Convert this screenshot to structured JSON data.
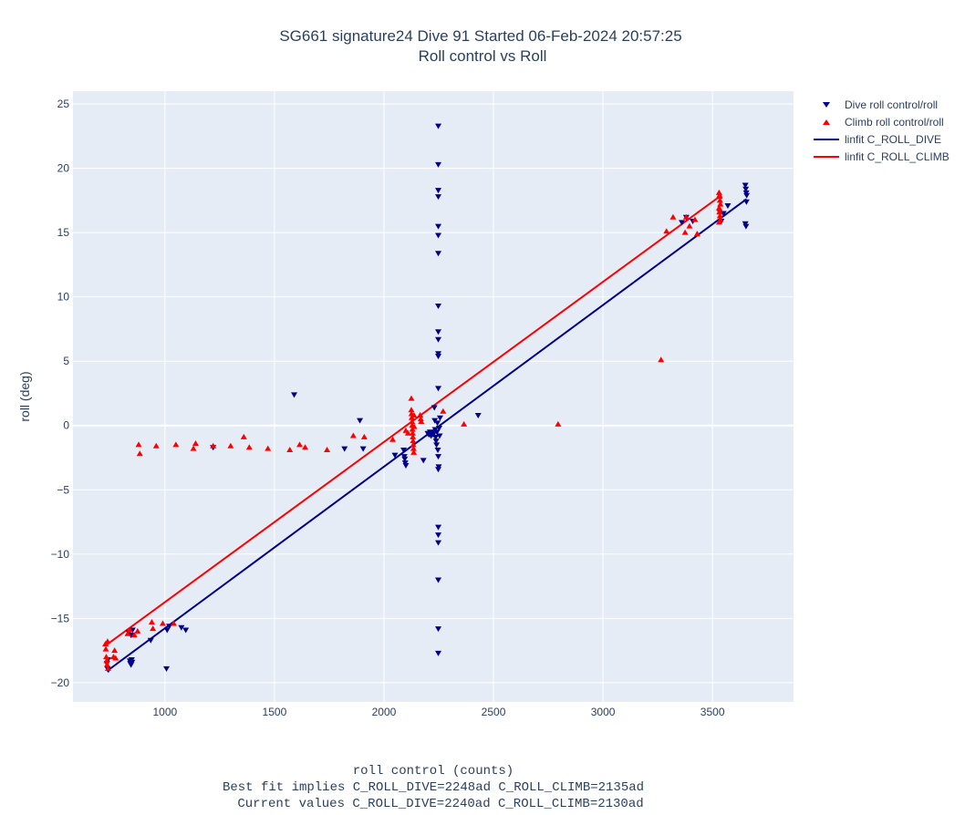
{
  "chart_data": {
    "type": "scatter",
    "title": "SG661 signature24 Dive 91 Started 06-Feb-2024 20:57:25",
    "subtitle": "Roll control vs Roll",
    "xlabel": "roll control (counts)",
    "xlabel_notes": [
      "Best fit implies C_ROLL_DIVE=2248ad C_ROLL_CLIMB=2135ad",
      "Current values C_ROLL_DIVE=2240ad C_ROLL_CLIMB=2130ad"
    ],
    "ylabel": "roll (deg)",
    "xlim": [
      580,
      3870
    ],
    "ylim": [
      -21.5,
      26
    ],
    "x_ticks": [
      1000,
      1500,
      2000,
      2500,
      3000,
      3500
    ],
    "x_tick_labels": [
      "1000",
      "1500",
      "2000",
      "2500",
      "3000",
      "3500"
    ],
    "y_ticks": [
      -20,
      -15,
      -10,
      -5,
      0,
      5,
      10,
      15,
      20,
      25
    ],
    "y_tick_labels": [
      "−20",
      "−15",
      "−10",
      "−5",
      "0",
      "5",
      "10",
      "15",
      "20",
      "25"
    ],
    "grid": true,
    "legend_position": "top-right",
    "series": [
      {
        "name": "Dive roll control/roll",
        "kind": "markers",
        "marker": "triangle-down",
        "color": "#00008b",
        "points": [
          [
            735,
            -18.5
          ],
          [
            738,
            -18.9
          ],
          [
            740,
            -18.2
          ],
          [
            742,
            -19.0
          ],
          [
            840,
            -18.3
          ],
          [
            842,
            -18.5
          ],
          [
            845,
            -18.6
          ],
          [
            848,
            -18.2
          ],
          [
            850,
            -18.4
          ],
          [
            835,
            -16.1
          ],
          [
            845,
            -16.3
          ],
          [
            852,
            -15.9
          ],
          [
            935,
            -16.7
          ],
          [
            1010,
            -15.9
          ],
          [
            1020,
            -15.6
          ],
          [
            1007,
            -18.9
          ],
          [
            1075,
            -15.7
          ],
          [
            1095,
            -15.9
          ],
          [
            1220,
            -1.7
          ],
          [
            1590,
            2.4
          ],
          [
            1820,
            -1.8
          ],
          [
            1890,
            0.4
          ],
          [
            1905,
            -1.8
          ],
          [
            2050,
            -2.3
          ],
          [
            2090,
            -1.9
          ],
          [
            2093,
            -2.4
          ],
          [
            2095,
            -2.6
          ],
          [
            2097,
            -2.9
          ],
          [
            2100,
            -3.1
          ],
          [
            2180,
            -2.7
          ],
          [
            2200,
            -0.6
          ],
          [
            2205,
            -0.7
          ],
          [
            2210,
            -0.5
          ],
          [
            2215,
            -0.8
          ],
          [
            2220,
            -0.6
          ],
          [
            2225,
            -0.7
          ],
          [
            2230,
            1.4
          ],
          [
            2232,
            0.4
          ],
          [
            2234,
            -0.3
          ],
          [
            2236,
            -0.9
          ],
          [
            2238,
            -1.2
          ],
          [
            2240,
            -1.5
          ],
          [
            2242,
            -0.5
          ],
          [
            2244,
            0.2
          ],
          [
            2246,
            -1.9
          ],
          [
            2248,
            -2.4
          ],
          [
            2250,
            -3.2
          ],
          [
            2252,
            -0.2
          ],
          [
            2254,
            -0.8
          ],
          [
            2256,
            0.6
          ],
          [
            2248,
            23.3
          ],
          [
            2248,
            20.3
          ],
          [
            2248,
            18.3
          ],
          [
            2248,
            17.8
          ],
          [
            2248,
            15.5
          ],
          [
            2248,
            14.8
          ],
          [
            2248,
            13.4
          ],
          [
            2248,
            9.3
          ],
          [
            2248,
            7.3
          ],
          [
            2248,
            6.7
          ],
          [
            2248,
            5.6
          ],
          [
            2248,
            5.4
          ],
          [
            2248,
            2.9
          ],
          [
            2248,
            -3.4
          ],
          [
            2248,
            -7.9
          ],
          [
            2248,
            -8.5
          ],
          [
            2248,
            -9.1
          ],
          [
            2248,
            -12.0
          ],
          [
            2248,
            -15.8
          ],
          [
            2248,
            -17.7
          ],
          [
            2430,
            0.8
          ],
          [
            3360,
            15.8
          ],
          [
            3380,
            16.2
          ],
          [
            3410,
            15.9
          ],
          [
            3540,
            15.9
          ],
          [
            3550,
            16.5
          ],
          [
            3570,
            17.1
          ],
          [
            3650,
            18.7
          ],
          [
            3652,
            18.4
          ],
          [
            3654,
            18.1
          ],
          [
            3656,
            17.9
          ],
          [
            3650,
            15.7
          ],
          [
            3653,
            15.5
          ],
          [
            3655,
            17.4
          ]
        ]
      },
      {
        "name": "Climb roll control/roll",
        "kind": "markers",
        "marker": "triangle-up",
        "color": "#ff0000",
        "points": [
          [
            728,
            -17.0
          ],
          [
            730,
            -17.4
          ],
          [
            732,
            -18.0
          ],
          [
            734,
            -18.3
          ],
          [
            736,
            -18.6
          ],
          [
            738,
            -16.8
          ],
          [
            740,
            -18.9
          ],
          [
            765,
            -18.0
          ],
          [
            770,
            -17.5
          ],
          [
            775,
            -18.1
          ],
          [
            830,
            -16.2
          ],
          [
            840,
            -15.9
          ],
          [
            860,
            -16.3
          ],
          [
            875,
            -16.0
          ],
          [
            880,
            -1.5
          ],
          [
            885,
            -2.2
          ],
          [
            940,
            -15.3
          ],
          [
            945,
            -15.8
          ],
          [
            960,
            -1.6
          ],
          [
            990,
            -15.4
          ],
          [
            1040,
            -15.4
          ],
          [
            1050,
            -1.5
          ],
          [
            1130,
            -1.8
          ],
          [
            1140,
            -1.4
          ],
          [
            1220,
            -1.6
          ],
          [
            1300,
            -1.6
          ],
          [
            1360,
            -0.9
          ],
          [
            1385,
            -1.7
          ],
          [
            1470,
            -1.8
          ],
          [
            1570,
            -1.9
          ],
          [
            1615,
            -1.5
          ],
          [
            1640,
            -1.7
          ],
          [
            1740,
            -1.9
          ],
          [
            1860,
            -0.8
          ],
          [
            1910,
            -0.9
          ],
          [
            2040,
            -1.1
          ],
          [
            2100,
            -0.4
          ],
          [
            2110,
            -0.6
          ],
          [
            2125,
            2.1
          ],
          [
            2125,
            1.2
          ],
          [
            2126,
            0.9
          ],
          [
            2127,
            0.6
          ],
          [
            2128,
            0.3
          ],
          [
            2129,
            0.0
          ],
          [
            2130,
            -0.3
          ],
          [
            2131,
            -0.6
          ],
          [
            2132,
            -0.9
          ],
          [
            2133,
            -1.2
          ],
          [
            2134,
            -1.5
          ],
          [
            2135,
            -1.8
          ],
          [
            2136,
            -2.1
          ],
          [
            2137,
            0.8
          ],
          [
            2138,
            -0.1
          ],
          [
            2165,
            0.8
          ],
          [
            2168,
            0.5
          ],
          [
            2170,
            0.3
          ],
          [
            2270,
            1.1
          ],
          [
            2365,
            0.1
          ],
          [
            2795,
            0.1
          ],
          [
            3265,
            5.1
          ],
          [
            3290,
            15.1
          ],
          [
            3320,
            16.2
          ],
          [
            3375,
            15.0
          ],
          [
            3380,
            16.2
          ],
          [
            3395,
            15.5
          ],
          [
            3420,
            16.0
          ],
          [
            3430,
            14.9
          ],
          [
            3530,
            18.1
          ],
          [
            3532,
            17.8
          ],
          [
            3534,
            17.5
          ],
          [
            3536,
            17.2
          ],
          [
            3530,
            16.9
          ],
          [
            3532,
            16.6
          ],
          [
            3534,
            16.3
          ],
          [
            3536,
            16.0
          ],
          [
            3530,
            15.8
          ],
          [
            3532,
            17.9
          ],
          [
            3534,
            16.8
          ]
        ]
      },
      {
        "name": "linfit C_ROLL_DIVE",
        "kind": "line",
        "color": "#00008b",
        "points": [
          [
            735,
            -19.1
          ],
          [
            3655,
            17.6
          ]
        ]
      },
      {
        "name": "linfit C_ROLL_CLIMB",
        "kind": "line",
        "color": "#ff0000",
        "points": [
          [
            730,
            -17.1
          ],
          [
            3540,
            17.9
          ]
        ]
      }
    ]
  }
}
